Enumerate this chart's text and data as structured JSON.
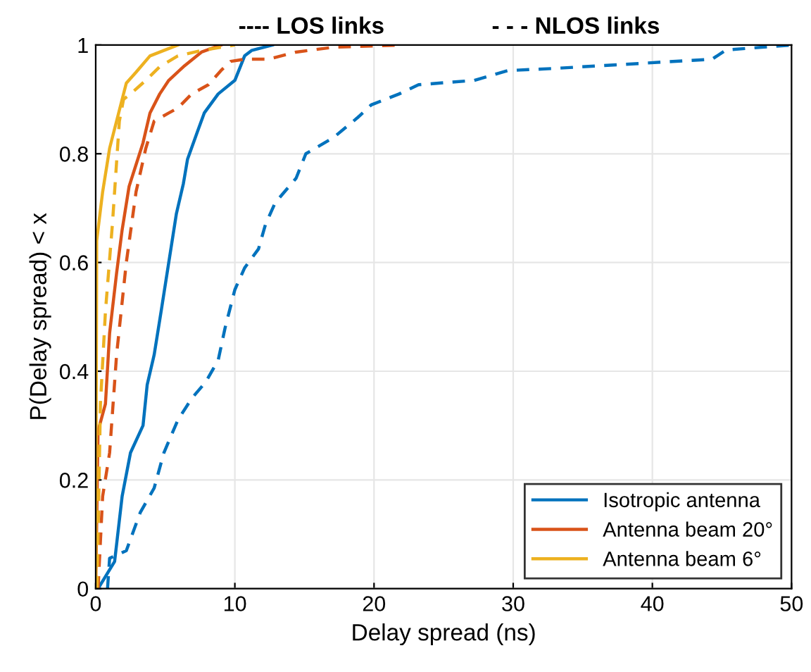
{
  "chart_data": {
    "type": "line",
    "xlabel": "Delay spread (ns)",
    "ylabel": "P(Delay spread) < x",
    "annotations": [
      "---- LOS links",
      "- - - NLOS links"
    ],
    "xlim": [
      0,
      50
    ],
    "xticks": [
      0,
      10,
      20,
      30,
      40,
      50
    ],
    "ylim": [
      0,
      1
    ],
    "yticks": [
      0,
      0.2,
      0.4,
      0.6,
      0.8,
      1
    ],
    "grid": true,
    "legend": "bottom right",
    "marker": "none",
    "series": [
      {
        "name": "Isotropic antenna",
        "color": "#0072bd",
        "line_style": "solid",
        "x": [
          0.17,
          1.36,
          1.9,
          2.5,
          3.4,
          3.7,
          4.2,
          4.7,
          5.25,
          5.8,
          6.3,
          6.6,
          7.3,
          7.8,
          8.8,
          10,
          10.7,
          11.2,
          12.7
        ],
        "values": [
          0,
          0.05,
          0.17,
          0.25,
          0.3,
          0.375,
          0.43,
          0.51,
          0.6,
          0.69,
          0.745,
          0.79,
          0.84,
          0.875,
          0.91,
          0.935,
          0.98,
          0.99,
          1
        ]
      },
      {
        "name": "Antenna beam 20°",
        "color": "#d95319",
        "line_style": "solid",
        "x": [
          0,
          0.17,
          0.7,
          1,
          1.5,
          1.9,
          2.4,
          2.9,
          3.4,
          3.9,
          4.6,
          5.25,
          6.3,
          7.6,
          9
        ],
        "values": [
          0,
          0.29,
          0.34,
          0.47,
          0.58,
          0.66,
          0.74,
          0.78,
          0.82,
          0.875,
          0.91,
          0.935,
          0.96,
          0.987,
          1
        ]
      },
      {
        "name": "Antenna beam 6°",
        "color": "#edb120",
        "line_style": "solid",
        "x": [
          0,
          0.07,
          0.5,
          1,
          1.7,
          2.2,
          2.9,
          3.9,
          4.9,
          5.9
        ],
        "values": [
          0,
          0.64,
          0.73,
          0.81,
          0.88,
          0.93,
          0.95,
          0.98,
          0.99,
          1
        ]
      },
      {
        "color": "#0072bd",
        "line_style": "dashed",
        "x": [
          0.85,
          1,
          2.2,
          3.2,
          4.2,
          4.9,
          5.9,
          6.9,
          7.9,
          8.8,
          9.3,
          10,
          10.7,
          11.7,
          12.2,
          12.9,
          14.4,
          15.1,
          17.1,
          18.8,
          19.8,
          21.8,
          23.2,
          27.2,
          29.6,
          33,
          39,
          44.3,
          45.3,
          50
        ],
        "values": [
          0,
          0.056,
          0.07,
          0.14,
          0.185,
          0.25,
          0.31,
          0.35,
          0.38,
          0.42,
          0.48,
          0.55,
          0.59,
          0.625,
          0.67,
          0.71,
          0.755,
          0.8,
          0.83,
          0.866,
          0.89,
          0.91,
          0.927,
          0.935,
          0.953,
          0.957,
          0.966,
          0.974,
          0.991,
          1
        ]
      },
      {
        "color": "#d95319",
        "line_style": "dashed",
        "x": [
          0.17,
          0.5,
          1,
          1.5,
          2.2,
          2.9,
          3.6,
          4.2,
          5.25,
          5.9,
          6.9,
          8.1,
          9,
          9.7,
          10.7,
          12.4,
          14.4,
          17.1,
          22
        ],
        "values": [
          0,
          0.17,
          0.25,
          0.43,
          0.6,
          0.73,
          0.81,
          0.86,
          0.875,
          0.884,
          0.91,
          0.927,
          0.953,
          0.97,
          0.974,
          0.974,
          0.987,
          0.996,
          1
        ]
      },
      {
        "color": "#edb120",
        "line_style": "dashed",
        "x": [
          0.1,
          0.34,
          0.7,
          1.2,
          1.7,
          2,
          2.5,
          3.6,
          4.6,
          5.9,
          7.6,
          10
        ],
        "values": [
          0,
          0.34,
          0.51,
          0.67,
          0.86,
          0.9,
          0.91,
          0.935,
          0.96,
          0.98,
          0.99,
          1
        ]
      }
    ]
  }
}
